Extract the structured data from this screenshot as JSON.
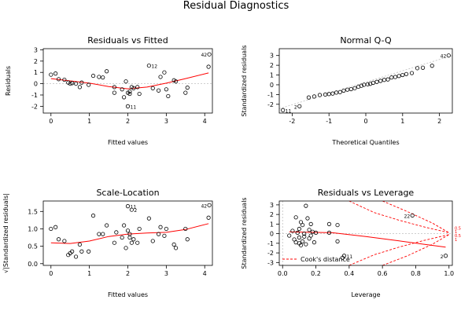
{
  "title": "Residual Diagnostics",
  "colors": {
    "points": "#000000",
    "smooth": "#ff0000",
    "reference": "#bdbdbd",
    "cook": "#ff0000"
  },
  "chart_data": [
    {
      "id": "rvf",
      "type": "scatter",
      "title": "Residuals vs Fitted",
      "xlabel": "Fitted values",
      "ylabel": "Residuals",
      "xlim": [
        -0.2,
        4.2
      ],
      "ylim": [
        -2.6,
        3.1
      ],
      "xticks": [
        0,
        1,
        2,
        3,
        4
      ],
      "yticks": [
        -2,
        -1,
        0,
        1,
        2,
        3
      ],
      "reference_line_y": 0,
      "points": [
        {
          "x": 0.0,
          "y": 0.8
        },
        {
          "x": 0.12,
          "y": 0.9
        },
        {
          "x": 0.2,
          "y": 0.4
        },
        {
          "x": 0.35,
          "y": 0.35
        },
        {
          "x": 0.45,
          "y": 0.1
        },
        {
          "x": 0.5,
          "y": 0.0
        },
        {
          "x": 0.55,
          "y": 0.05
        },
        {
          "x": 0.65,
          "y": 0.0
        },
        {
          "x": 0.75,
          "y": -0.3
        },
        {
          "x": 0.8,
          "y": 0.1
        },
        {
          "x": 0.98,
          "y": -0.1
        },
        {
          "x": 1.1,
          "y": 0.7
        },
        {
          "x": 1.25,
          "y": 0.6
        },
        {
          "x": 1.35,
          "y": 0.55
        },
        {
          "x": 1.45,
          "y": 1.1
        },
        {
          "x": 1.65,
          "y": -0.3
        },
        {
          "x": 1.65,
          "y": -0.8
        },
        {
          "x": 1.85,
          "y": -0.5
        },
        {
          "x": 1.95,
          "y": 0.2
        },
        {
          "x": 1.9,
          "y": -1.2
        },
        {
          "x": 2.0,
          "y": -0.8
        },
        {
          "x": 2.05,
          "y": -0.9
        },
        {
          "x": 2.05,
          "y": -0.7
        },
        {
          "x": 2.1,
          "y": -0.3
        },
        {
          "x": 2.15,
          "y": -0.4
        },
        {
          "x": 2.25,
          "y": -0.3
        },
        {
          "x": 2.3,
          "y": -0.9
        },
        {
          "x": 2.0,
          "y": -2.0
        },
        {
          "x": 2.55,
          "y": 1.6
        },
        {
          "x": 2.65,
          "y": -0.4
        },
        {
          "x": 2.8,
          "y": -0.6
        },
        {
          "x": 2.85,
          "y": 0.6
        },
        {
          "x": 2.95,
          "y": 1.0
        },
        {
          "x": 3.0,
          "y": -0.5
        },
        {
          "x": 3.05,
          "y": -1.1
        },
        {
          "x": 3.2,
          "y": 0.3
        },
        {
          "x": 3.25,
          "y": 0.2
        },
        {
          "x": 3.5,
          "y": -0.8
        },
        {
          "x": 3.55,
          "y": -0.35
        },
        {
          "x": 4.1,
          "y": 1.5
        },
        {
          "x": 4.12,
          "y": 2.6
        }
      ],
      "smooth": [
        {
          "x": 0.0,
          "y": 0.45
        },
        {
          "x": 0.5,
          "y": 0.25
        },
        {
          "x": 1.0,
          "y": 0.05
        },
        {
          "x": 1.5,
          "y": -0.25
        },
        {
          "x": 2.0,
          "y": -0.45
        },
        {
          "x": 2.5,
          "y": -0.3
        },
        {
          "x": 3.0,
          "y": 0.05
        },
        {
          "x": 3.5,
          "y": 0.45
        },
        {
          "x": 4.1,
          "y": 0.95
        }
      ],
      "labels": [
        {
          "text": "42",
          "x": 4.12,
          "y": 2.6,
          "pos": "left"
        },
        {
          "text": "12",
          "x": 2.55,
          "y": 1.6,
          "pos": "right"
        },
        {
          "text": "11",
          "x": 2.0,
          "y": -2.0,
          "pos": "right"
        }
      ]
    },
    {
      "id": "qq",
      "type": "scatter",
      "title": "Normal Q-Q",
      "xlabel": "Theoretical Quantiles",
      "ylabel": "Standardized residuals",
      "xlim": [
        -2.35,
        2.35
      ],
      "ylim": [
        -2.9,
        3.7
      ],
      "xticks": [
        -2,
        -1,
        0,
        1,
        2
      ],
      "yticks": [
        -2,
        -1,
        0,
        1,
        2,
        3
      ],
      "reference_line": [
        {
          "x": -2.35,
          "y": -2.45
        },
        {
          "x": 2.35,
          "y": 3.0
        }
      ],
      "points": [
        {
          "x": -2.25,
          "y": -2.6
        },
        {
          "x": -1.8,
          "y": -2.2
        },
        {
          "x": -1.55,
          "y": -1.3
        },
        {
          "x": -1.4,
          "y": -1.2
        },
        {
          "x": -1.25,
          "y": -1.05
        },
        {
          "x": -1.1,
          "y": -1.0
        },
        {
          "x": -1.0,
          "y": -0.95
        },
        {
          "x": -0.9,
          "y": -0.9
        },
        {
          "x": -0.8,
          "y": -0.8
        },
        {
          "x": -0.7,
          "y": -0.75
        },
        {
          "x": -0.6,
          "y": -0.6
        },
        {
          "x": -0.5,
          "y": -0.5
        },
        {
          "x": -0.4,
          "y": -0.45
        },
        {
          "x": -0.3,
          "y": -0.35
        },
        {
          "x": -0.2,
          "y": -0.2
        },
        {
          "x": -0.12,
          "y": -0.1
        },
        {
          "x": -0.05,
          "y": 0.0
        },
        {
          "x": 0.05,
          "y": 0.05
        },
        {
          "x": 0.12,
          "y": 0.1
        },
        {
          "x": 0.2,
          "y": 0.2
        },
        {
          "x": 0.3,
          "y": 0.3
        },
        {
          "x": 0.4,
          "y": 0.4
        },
        {
          "x": 0.5,
          "y": 0.5
        },
        {
          "x": 0.6,
          "y": 0.55
        },
        {
          "x": 0.7,
          "y": 0.75
        },
        {
          "x": 0.8,
          "y": 0.8
        },
        {
          "x": 0.9,
          "y": 0.9
        },
        {
          "x": 1.0,
          "y": 1.0
        },
        {
          "x": 1.1,
          "y": 1.1
        },
        {
          "x": 1.25,
          "y": 1.2
        },
        {
          "x": 1.4,
          "y": 1.7
        },
        {
          "x": 1.55,
          "y": 1.75
        },
        {
          "x": 1.8,
          "y": 1.95
        },
        {
          "x": 2.25,
          "y": 3.0
        }
      ],
      "labels": [
        {
          "text": "42",
          "x": 2.25,
          "y": 3.0,
          "pos": "left"
        },
        {
          "text": "2",
          "x": -1.8,
          "y": -2.2,
          "pos": "left"
        },
        {
          "text": "11",
          "x": -2.25,
          "y": -2.6,
          "pos": "right"
        }
      ]
    },
    {
      "id": "sl",
      "type": "scatter",
      "title": "Scale-Location",
      "xlabel": "Fitted values",
      "ylabel": "√|Standardized residuals|",
      "xlim": [
        -0.2,
        4.2
      ],
      "ylim": [
        -0.05,
        1.8
      ],
      "xticks": [
        0,
        1,
        2,
        3,
        4
      ],
      "yticks": [
        0.0,
        0.5,
        1.0,
        1.5
      ],
      "points": [
        {
          "x": 0.0,
          "y": 1.0
        },
        {
          "x": 0.12,
          "y": 1.05
        },
        {
          "x": 0.2,
          "y": 0.7
        },
        {
          "x": 0.35,
          "y": 0.65
        },
        {
          "x": 0.45,
          "y": 0.25
        },
        {
          "x": 0.5,
          "y": 0.3
        },
        {
          "x": 0.55,
          "y": 0.35
        },
        {
          "x": 0.65,
          "y": 0.2
        },
        {
          "x": 0.75,
          "y": 0.55
        },
        {
          "x": 0.8,
          "y": 0.35
        },
        {
          "x": 0.98,
          "y": 0.35
        },
        {
          "x": 1.1,
          "y": 1.38
        },
        {
          "x": 1.25,
          "y": 0.85
        },
        {
          "x": 1.35,
          "y": 0.85
        },
        {
          "x": 1.45,
          "y": 1.1
        },
        {
          "x": 1.65,
          "y": 0.6
        },
        {
          "x": 1.7,
          "y": 0.9
        },
        {
          "x": 1.85,
          "y": 0.75
        },
        {
          "x": 1.95,
          "y": 0.45
        },
        {
          "x": 1.9,
          "y": 1.1
        },
        {
          "x": 2.0,
          "y": 0.95
        },
        {
          "x": 2.05,
          "y": 0.85
        },
        {
          "x": 2.05,
          "y": 0.75
        },
        {
          "x": 2.1,
          "y": 0.6
        },
        {
          "x": 2.15,
          "y": 0.7
        },
        {
          "x": 2.25,
          "y": 0.6
        },
        {
          "x": 2.3,
          "y": 1.0
        },
        {
          "x": 2.0,
          "y": 1.65
        },
        {
          "x": 2.1,
          "y": 1.55
        },
        {
          "x": 2.55,
          "y": 1.3
        },
        {
          "x": 2.65,
          "y": 0.65
        },
        {
          "x": 2.8,
          "y": 0.85
        },
        {
          "x": 2.85,
          "y": 1.05
        },
        {
          "x": 2.95,
          "y": 0.8
        },
        {
          "x": 3.0,
          "y": 1.0
        },
        {
          "x": 3.2,
          "y": 0.55
        },
        {
          "x": 3.25,
          "y": 0.45
        },
        {
          "x": 3.5,
          "y": 1.0
        },
        {
          "x": 3.55,
          "y": 0.7
        },
        {
          "x": 4.1,
          "y": 1.32
        },
        {
          "x": 4.12,
          "y": 1.68
        }
      ],
      "smooth": [
        {
          "x": 0.0,
          "y": 0.6
        },
        {
          "x": 0.5,
          "y": 0.58
        },
        {
          "x": 1.0,
          "y": 0.65
        },
        {
          "x": 1.5,
          "y": 0.78
        },
        {
          "x": 2.0,
          "y": 0.85
        },
        {
          "x": 2.5,
          "y": 0.88
        },
        {
          "x": 3.0,
          "y": 0.9
        },
        {
          "x": 3.5,
          "y": 0.98
        },
        {
          "x": 4.1,
          "y": 1.15
        }
      ],
      "labels": [
        {
          "text": "42",
          "x": 4.12,
          "y": 1.68,
          "pos": "left"
        },
        {
          "text": "11",
          "x": 2.0,
          "y": 1.65,
          "pos": "right"
        },
        {
          "text": "2",
          "x": 2.1,
          "y": 1.55,
          "pos": "right"
        }
      ]
    },
    {
      "id": "rvl",
      "type": "scatter",
      "title": "Residuals vs Leverage",
      "xlabel": "Leverage",
      "ylabel": "Standardized residuals",
      "xlim": [
        -0.02,
        1.02
      ],
      "ylim": [
        -3.3,
        3.4
      ],
      "xticks": [
        0.0,
        0.2,
        0.4,
        0.6,
        0.8,
        1.0
      ],
      "yticks": [
        -3,
        -2,
        -1,
        0,
        1,
        2,
        3
      ],
      "reference_line_y": 0,
      "reference_line_x": 0,
      "points": [
        {
          "x": 0.04,
          "y": -0.2
        },
        {
          "x": 0.06,
          "y": 0.3
        },
        {
          "x": 0.07,
          "y": -0.6
        },
        {
          "x": 0.08,
          "y": 1.7
        },
        {
          "x": 0.08,
          "y": -0.9
        },
        {
          "x": 0.09,
          "y": 0.1
        },
        {
          "x": 0.1,
          "y": -1.0
        },
        {
          "x": 0.1,
          "y": 0.5
        },
        {
          "x": 0.1,
          "y": -0.4
        },
        {
          "x": 0.11,
          "y": 1.2
        },
        {
          "x": 0.11,
          "y": -1.2
        },
        {
          "x": 0.12,
          "y": 0.9
        },
        {
          "x": 0.12,
          "y": -0.8
        },
        {
          "x": 0.13,
          "y": 0.0
        },
        {
          "x": 0.13,
          "y": -0.3
        },
        {
          "x": 0.14,
          "y": 2.9
        },
        {
          "x": 0.14,
          "y": -1.1
        },
        {
          "x": 0.15,
          "y": 1.6
        },
        {
          "x": 0.16,
          "y": 0.4
        },
        {
          "x": 0.16,
          "y": -0.5
        },
        {
          "x": 0.17,
          "y": 1.0
        },
        {
          "x": 0.17,
          "y": -0.2
        },
        {
          "x": 0.18,
          "y": 0.2
        },
        {
          "x": 0.19,
          "y": -0.9
        },
        {
          "x": 0.2,
          "y": 0.1
        },
        {
          "x": 0.28,
          "y": 1.0
        },
        {
          "x": 0.28,
          "y": 0.1
        },
        {
          "x": 0.33,
          "y": -0.8
        },
        {
          "x": 0.36,
          "y": -2.5
        },
        {
          "x": 0.37,
          "y": -2.3
        },
        {
          "x": 0.33,
          "y": 0.9
        },
        {
          "x": 0.78,
          "y": 1.9
        },
        {
          "x": 0.98,
          "y": -2.3
        }
      ],
      "smooth": [
        {
          "x": 0.04,
          "y": 0.2
        },
        {
          "x": 0.15,
          "y": 0.15
        },
        {
          "x": 0.3,
          "y": 0.1
        },
        {
          "x": 0.5,
          "y": -0.3
        },
        {
          "x": 0.7,
          "y": -0.75
        },
        {
          "x": 0.85,
          "y": -1.1
        },
        {
          "x": 0.98,
          "y": -1.4
        }
      ],
      "cook_contours": [
        {
          "level": "0.5",
          "side": "upper",
          "points": [
            {
              "x": 0.4,
              "y": 3.4
            },
            {
              "x": 0.55,
              "y": 2.2
            },
            {
              "x": 0.7,
              "y": 1.4
            },
            {
              "x": 0.85,
              "y": 0.7
            },
            {
              "x": 1.0,
              "y": 0.1
            }
          ]
        },
        {
          "level": "1",
          "side": "upper",
          "points": [
            {
              "x": 0.6,
              "y": 3.4
            },
            {
              "x": 0.75,
              "y": 2.3
            },
            {
              "x": 0.9,
              "y": 1.1
            },
            {
              "x": 1.0,
              "y": 0.1
            }
          ]
        },
        {
          "level": "0.5",
          "side": "lower",
          "points": [
            {
              "x": 0.4,
              "y": -3.3
            },
            {
              "x": 0.55,
              "y": -2.2
            },
            {
              "x": 0.7,
              "y": -1.4
            },
            {
              "x": 0.85,
              "y": -0.7
            },
            {
              "x": 1.0,
              "y": -0.1
            }
          ]
        },
        {
          "level": "1",
          "side": "lower",
          "points": [
            {
              "x": 0.6,
              "y": -3.3
            },
            {
              "x": 0.75,
              "y": -2.3
            },
            {
              "x": 0.9,
              "y": -1.1
            },
            {
              "x": 1.0,
              "y": -0.1
            }
          ]
        }
      ],
      "cook_labels": [
        {
          "text": "0.5",
          "y": 0.6
        },
        {
          "text": "1",
          "y": 0.2
        },
        {
          "text": "0.5",
          "y": -0.2
        },
        {
          "text": "1",
          "y": -0.6
        }
      ],
      "labels": [
        {
          "text": "22",
          "x": 0.78,
          "y": 1.9,
          "pos": "left"
        },
        {
          "text": "2",
          "x": 0.98,
          "y": -2.3,
          "pos": "left"
        },
        {
          "text": "11",
          "x": 0.37,
          "y": -2.3,
          "pos": "right"
        }
      ],
      "legend": {
        "text": "Cook's distance",
        "position": "bottom-left"
      }
    }
  ]
}
